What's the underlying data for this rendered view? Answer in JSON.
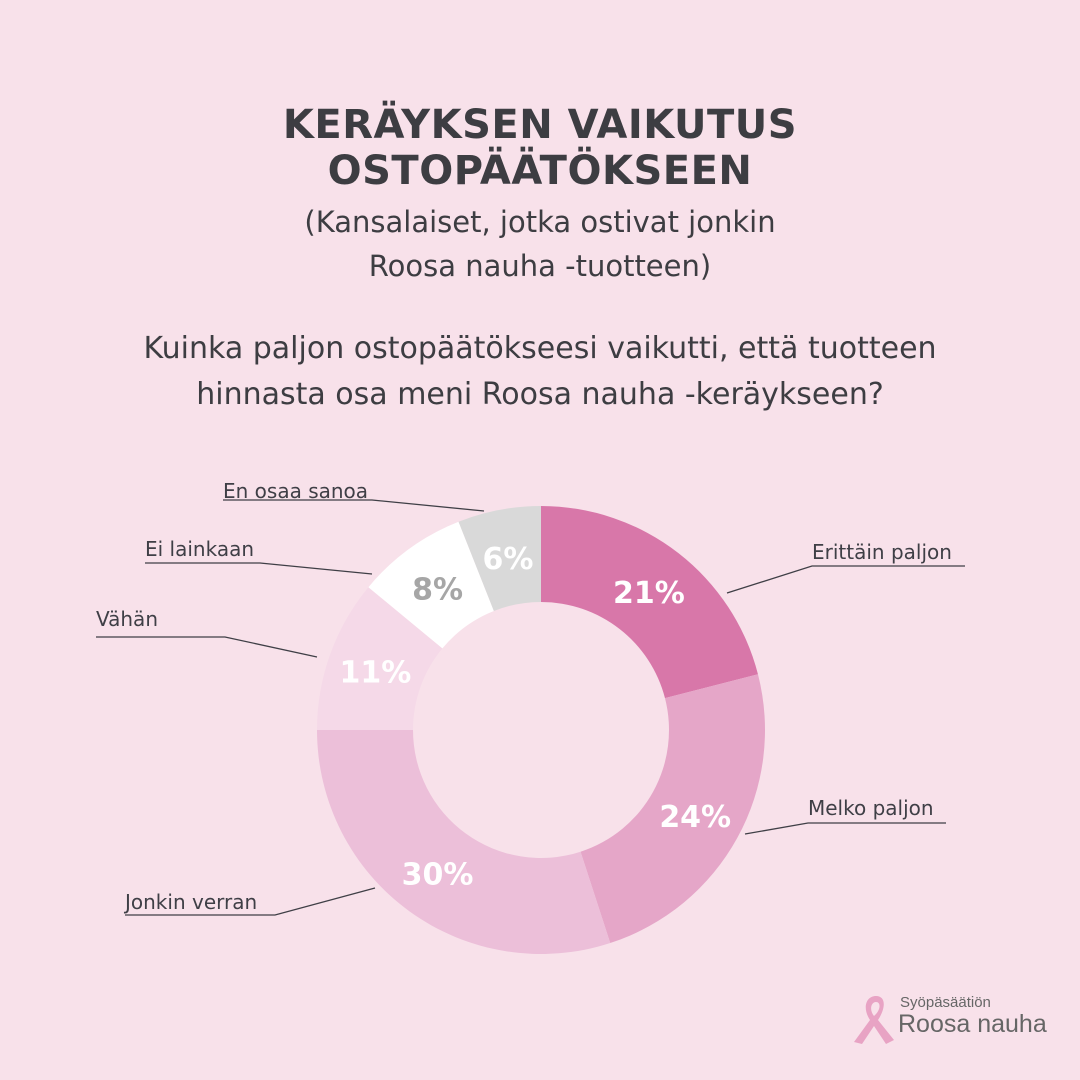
{
  "title_line1": "KERÄYKSEN VAIKUTUS",
  "title_line2": "OSTOPÄÄTÖKSEEN",
  "subtitle_line1": "(Kansalaiset, jotka ostivat jonkin",
  "subtitle_line2": "Roosa nauha -tuotteen)",
  "question_line1": "Kuinka paljon ostopäätökseesi vaikutti, että tuotteen",
  "question_line2": "hinnasta osa meni Roosa nauha -keräykseen?",
  "logo": {
    "small": "Syöpäsäätiön",
    "big": "Roosa nauha"
  },
  "chart_data": {
    "type": "pie",
    "donut": true,
    "slices": [
      {
        "label": "Erittäin paljon",
        "value": 21,
        "value_label": "21%",
        "color": "#d877a9",
        "text_color": "#ffffff"
      },
      {
        "label": "Melko paljon",
        "value": 24,
        "value_label": "24%",
        "color": "#e5a6c8",
        "text_color": "#ffffff"
      },
      {
        "label": "Jonkin verran",
        "value": 30,
        "value_label": "30%",
        "color": "#ecbfd9",
        "text_color": "#ffffff"
      },
      {
        "label": "Vähän",
        "value": 11,
        "value_label": "11%",
        "color": "#f5d9e8",
        "text_color": "#ffffff"
      },
      {
        "label": "Ei lainkaan",
        "value": 8,
        "value_label": "8%",
        "color": "#ffffff",
        "text_color": "#a6a6a6"
      },
      {
        "label": "En osaa sanoa",
        "value": 6,
        "value_label": "6%",
        "color": "#d9d9d9",
        "text_color": "#ffffff"
      }
    ]
  }
}
